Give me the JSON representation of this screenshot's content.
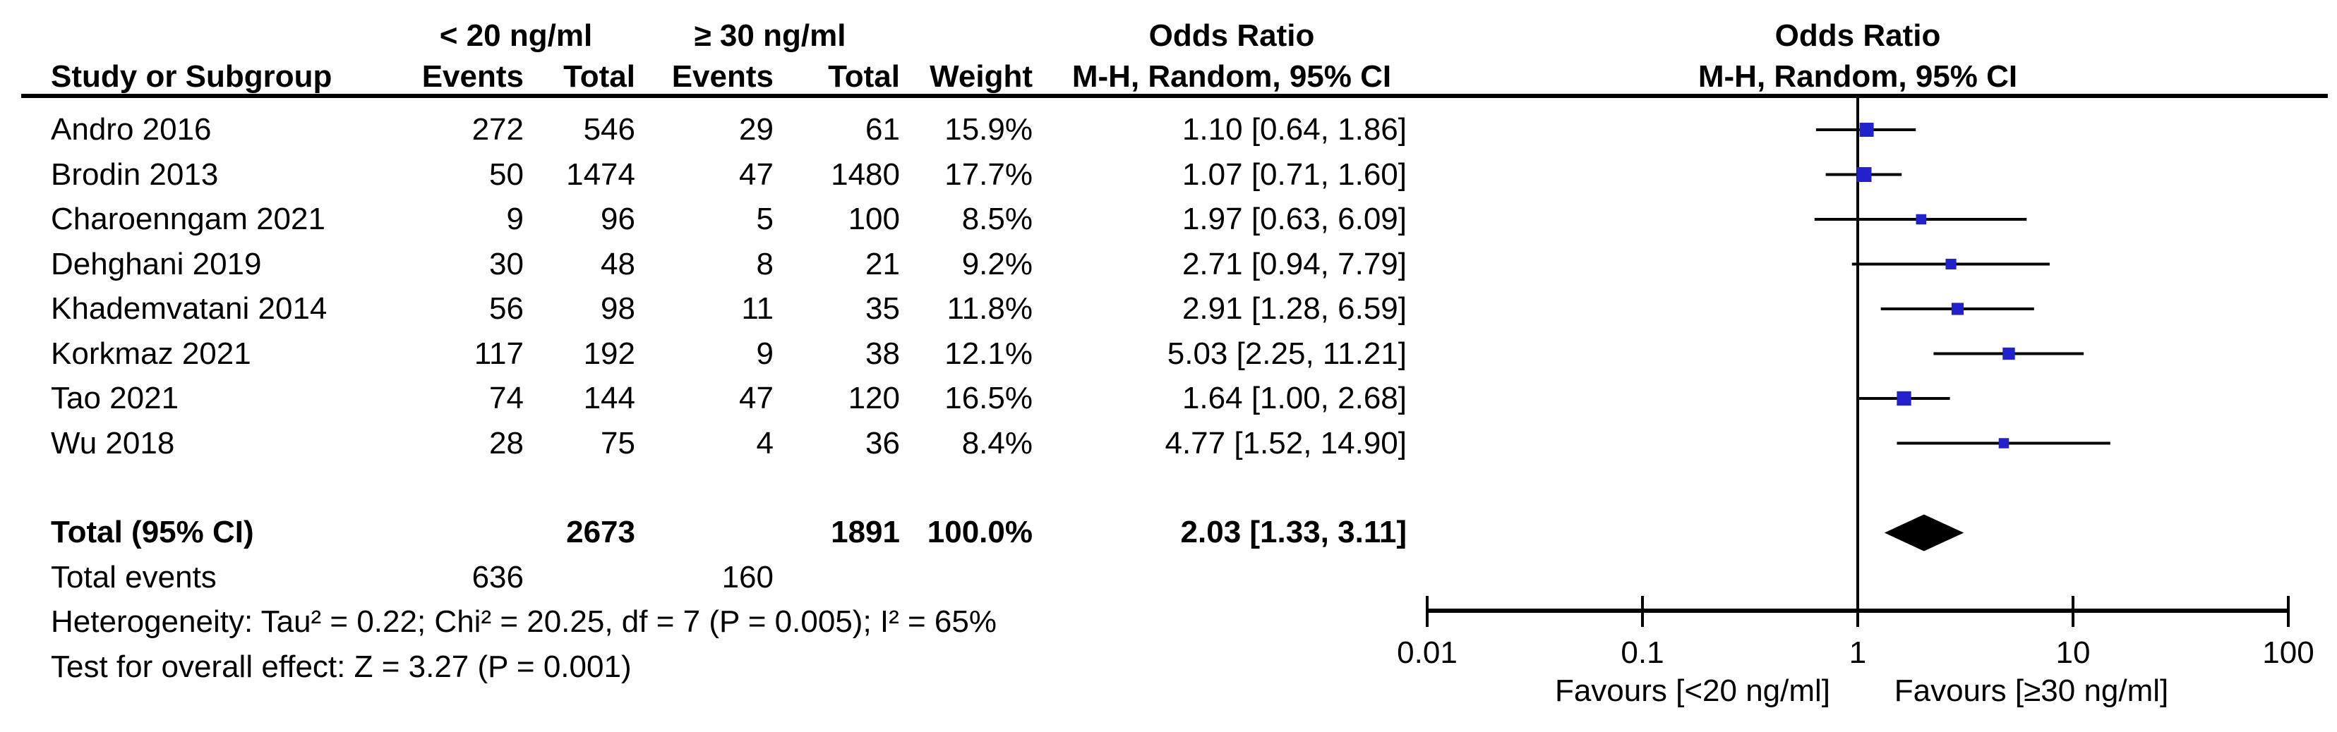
{
  "figure": {
    "columns": {
      "group1": "< 20 ng/ml",
      "group2": "≥ 30 ng/ml",
      "study": "Study or Subgroup",
      "events": "Events",
      "total": "Total",
      "weight": "Weight",
      "or_heading": "Odds Ratio",
      "or_subheading": "M-H, Random, 95% CI",
      "plot_heading": "Odds Ratio",
      "plot_subheading": "M-H, Random, 95% CI"
    },
    "footer": {
      "heterogeneity": "Heterogeneity: Tau² = 0.22; Chi² = 20.25, df = 7 (P = 0.005); I² = 65%",
      "overall_effect": "Test for overall effect: Z = 3.27 (P = 0.001)"
    }
  },
  "chart_data": {
    "type": "forest",
    "effect_measure": "Odds Ratio",
    "method": "M-H, Random, 95% CI",
    "group1_label": "< 20 ng/ml",
    "group2_label": "≥ 30 ng/ml",
    "studies": [
      {
        "name": "Andro 2016",
        "events1": 272,
        "total1": 546,
        "events2": 29,
        "total2": 61,
        "weight": "15.9%",
        "weight_value": 15.9,
        "or": 1.1,
        "ci_low": 0.64,
        "ci_high": 1.86,
        "or_label": "1.10 [0.64, 1.86]"
      },
      {
        "name": "Brodin 2013",
        "events1": 50,
        "total1": 1474,
        "events2": 47,
        "total2": 1480,
        "weight": "17.7%",
        "weight_value": 17.7,
        "or": 1.07,
        "ci_low": 0.71,
        "ci_high": 1.6,
        "or_label": "1.07 [0.71, 1.60]"
      },
      {
        "name": "Charoenngam 2021",
        "events1": 9,
        "total1": 96,
        "events2": 5,
        "total2": 100,
        "weight": "8.5%",
        "weight_value": 8.5,
        "or": 1.97,
        "ci_low": 0.63,
        "ci_high": 6.09,
        "or_label": "1.97 [0.63, 6.09]"
      },
      {
        "name": "Dehghani 2019",
        "events1": 30,
        "total1": 48,
        "events2": 8,
        "total2": 21,
        "weight": "9.2%",
        "weight_value": 9.2,
        "or": 2.71,
        "ci_low": 0.94,
        "ci_high": 7.79,
        "or_label": "2.71 [0.94, 7.79]"
      },
      {
        "name": "Khademvatani 2014",
        "events1": 56,
        "total1": 98,
        "events2": 11,
        "total2": 35,
        "weight": "11.8%",
        "weight_value": 11.8,
        "or": 2.91,
        "ci_low": 1.28,
        "ci_high": 6.59,
        "or_label": "2.91 [1.28, 6.59]"
      },
      {
        "name": "Korkmaz 2021",
        "events1": 117,
        "total1": 192,
        "events2": 9,
        "total2": 38,
        "weight": "12.1%",
        "weight_value": 12.1,
        "or": 5.03,
        "ci_low": 2.25,
        "ci_high": 11.21,
        "or_label": "5.03 [2.25, 11.21]"
      },
      {
        "name": "Tao 2021",
        "events1": 74,
        "total1": 144,
        "events2": 47,
        "total2": 120,
        "weight": "16.5%",
        "weight_value": 16.5,
        "or": 1.64,
        "ci_low": 1.0,
        "ci_high": 2.68,
        "or_label": "1.64 [1.00, 2.68]"
      },
      {
        "name": "Wu 2018",
        "events1": 28,
        "total1": 75,
        "events2": 4,
        "total2": 36,
        "weight": "8.4%",
        "weight_value": 8.4,
        "or": 4.77,
        "ci_low": 1.52,
        "ci_high": 14.9,
        "or_label": "4.77 [1.52, 14.90]"
      }
    ],
    "total": {
      "label": "Total (95% CI)",
      "total1": 2673,
      "total2": 1891,
      "weight": "100.0%",
      "or": 2.03,
      "ci_low": 1.33,
      "ci_high": 3.11,
      "or_label": "2.03 [1.33, 3.11]"
    },
    "total_events": {
      "label": "Total events",
      "events1": 636,
      "events2": 160
    },
    "axis": {
      "scale": "log",
      "ticks": [
        0.01,
        0.1,
        1,
        10,
        100
      ],
      "tick_labels": [
        "0.01",
        "0.1",
        "1",
        "10",
        "100"
      ],
      "xlim": [
        0.01,
        100
      ]
    },
    "favours_left": "Favours [<20 ng/ml]",
    "favours_right": "Favours [≥30 ng/ml]",
    "marker_color": "#2222cc",
    "line_color": "#000000"
  }
}
